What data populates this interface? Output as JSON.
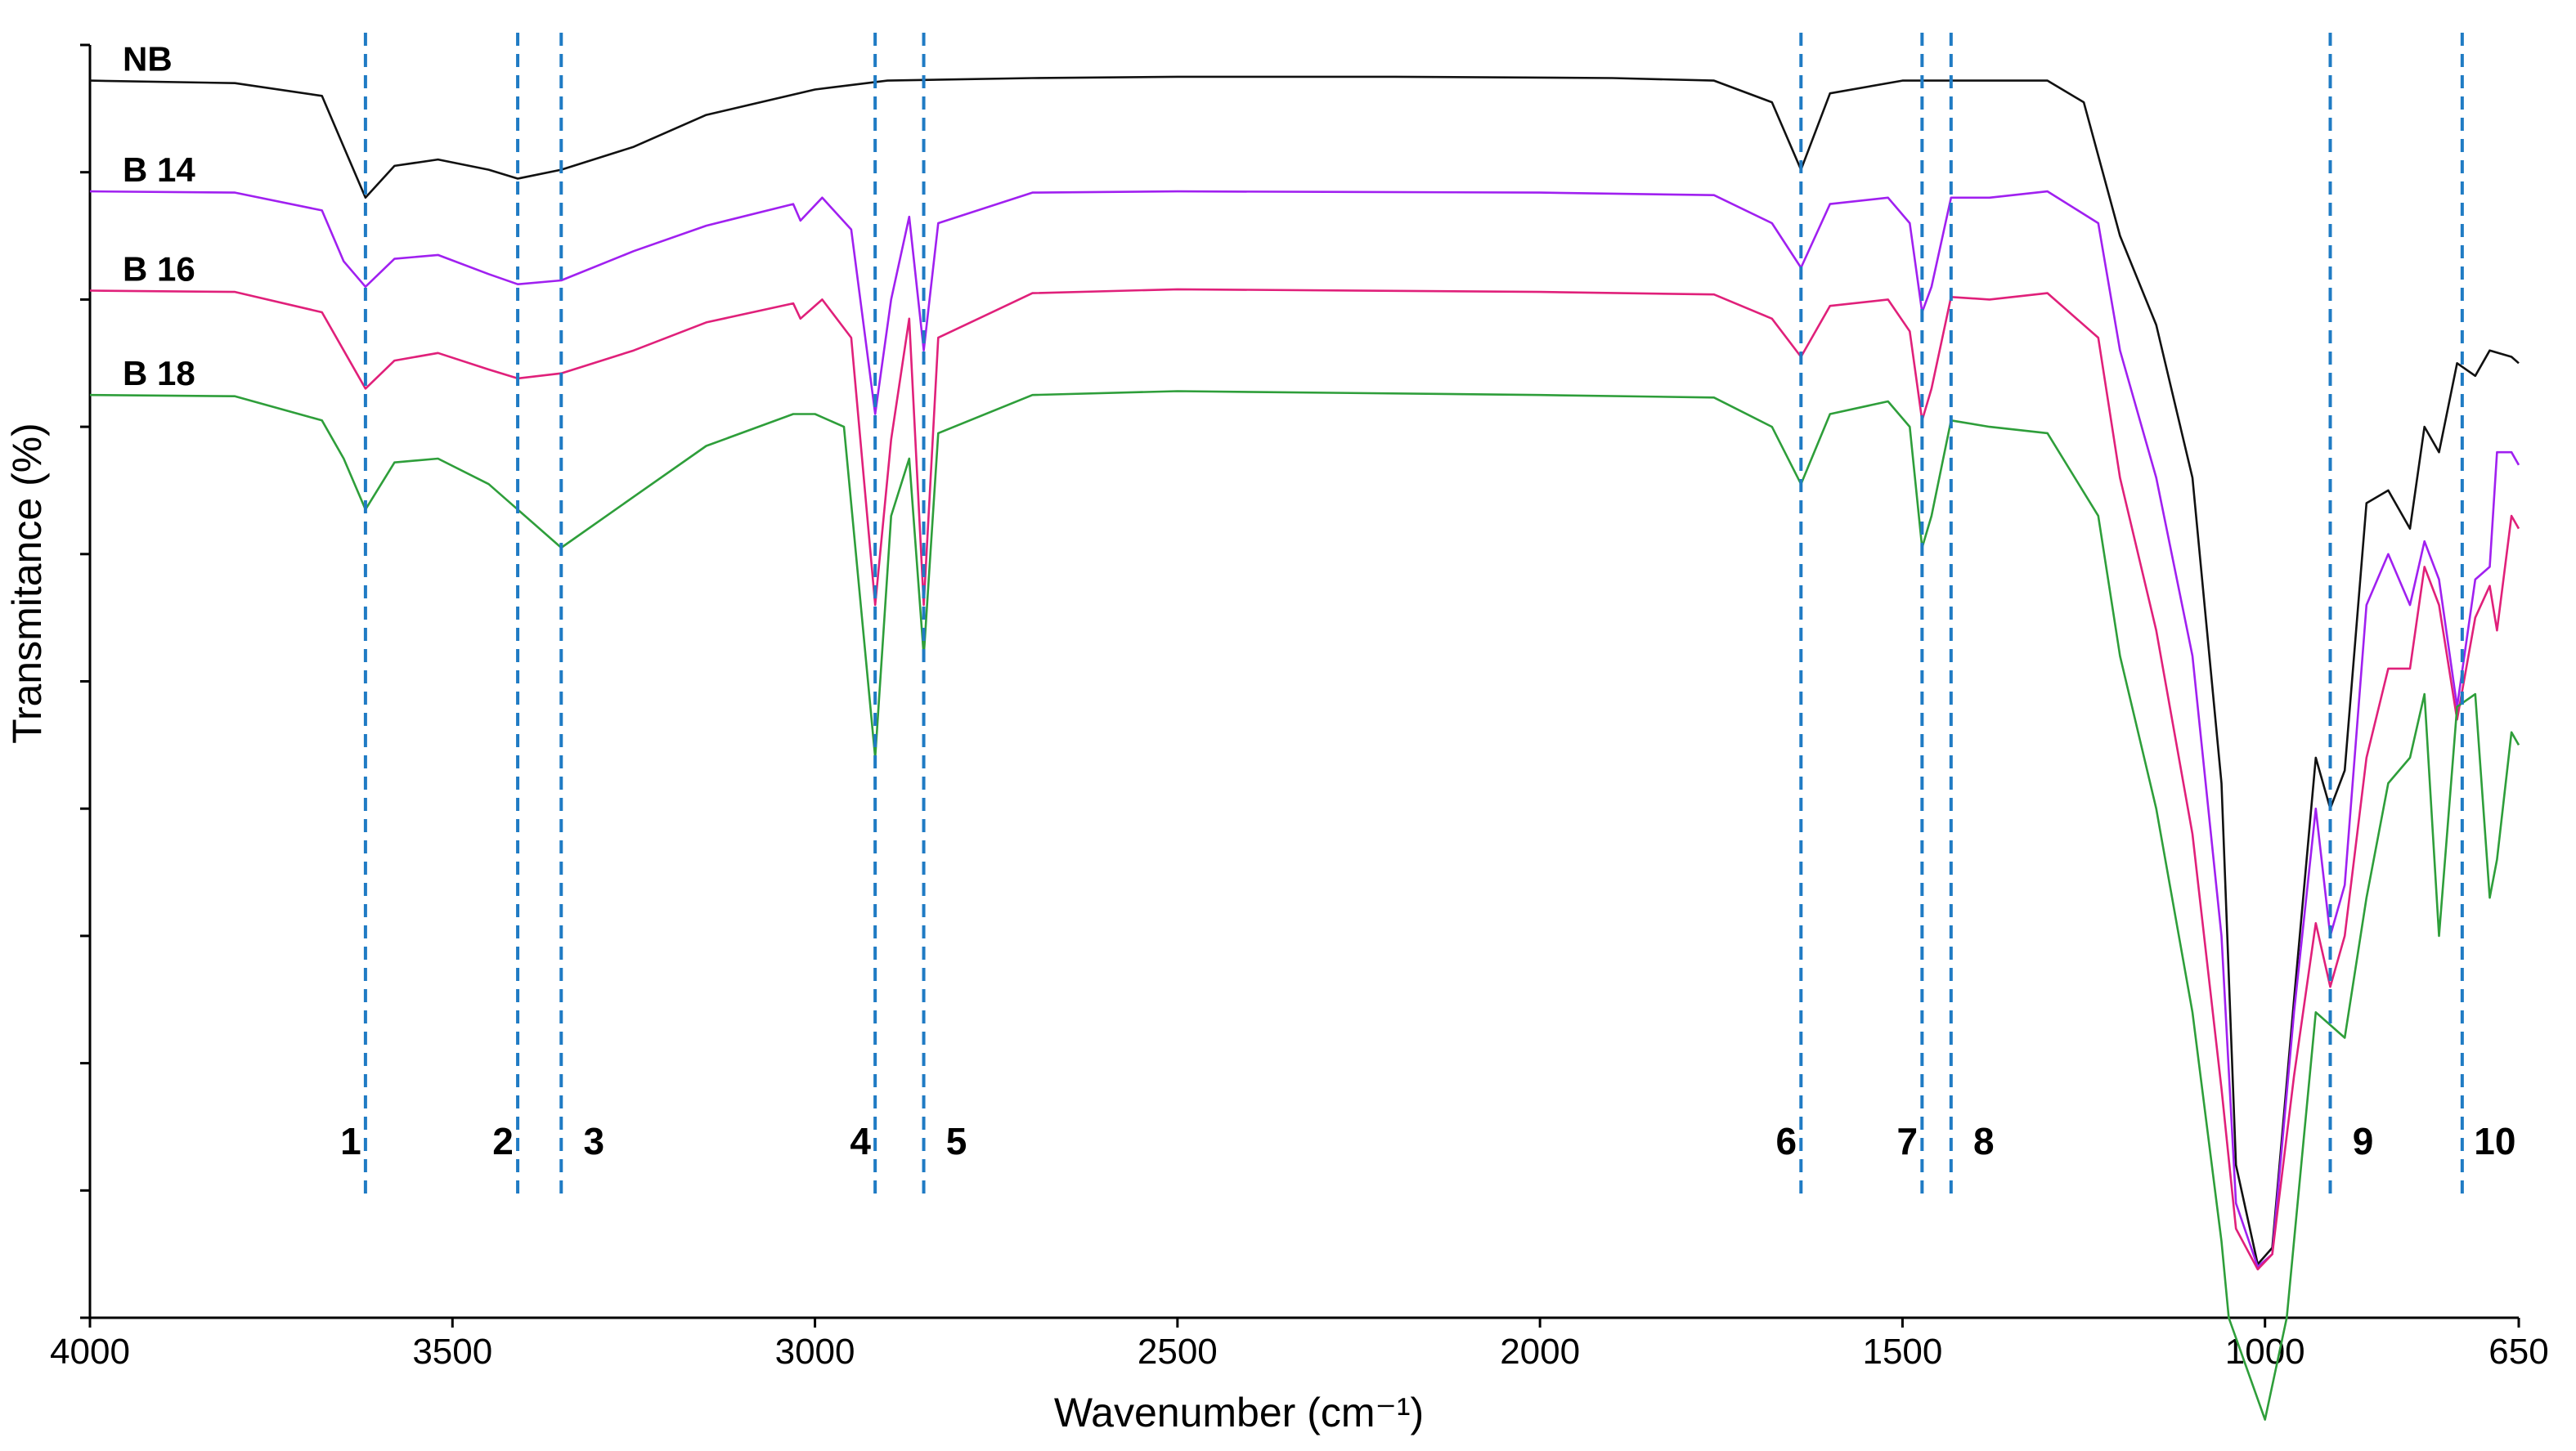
{
  "chart_data": {
    "type": "line",
    "title": "",
    "xlabel": "Wavenumber (cm⁻¹)",
    "ylabel": "Transmitance (%)",
    "xlim": [
      4000,
      650
    ],
    "x_reversed": true,
    "xticks": [
      4000,
      3500,
      3000,
      2500,
      2000,
      1500,
      1000,
      650
    ],
    "ylim": [
      0,
      10
    ],
    "y_tick_count": 11,
    "y_tick_labels_shown": false,
    "grid": false,
    "peak_lines": [
      {
        "label": "1",
        "x": 3620
      },
      {
        "label": "2",
        "x": 3410
      },
      {
        "label": "3",
        "x": 3350
      },
      {
        "label": "4",
        "x": 2917
      },
      {
        "label": "5",
        "x": 2850
      },
      {
        "label": "6",
        "x": 1640
      },
      {
        "label": "7",
        "x": 1473
      },
      {
        "label": "8",
        "x": 1433
      },
      {
        "label": "9",
        "x": 910
      },
      {
        "label": "10",
        "x": 728
      }
    ],
    "series": [
      {
        "name": "NB",
        "color": "#111111",
        "points": [
          [
            4000,
            9.72
          ],
          [
            3800,
            9.7
          ],
          [
            3680,
            9.6
          ],
          [
            3650,
            9.2
          ],
          [
            3620,
            8.8
          ],
          [
            3580,
            9.05
          ],
          [
            3520,
            9.1
          ],
          [
            3450,
            9.02
          ],
          [
            3410,
            8.95
          ],
          [
            3350,
            9.02
          ],
          [
            3250,
            9.2
          ],
          [
            3150,
            9.45
          ],
          [
            3000,
            9.65
          ],
          [
            2900,
            9.72
          ],
          [
            2700,
            9.74
          ],
          [
            2500,
            9.75
          ],
          [
            2200,
            9.75
          ],
          [
            1900,
            9.74
          ],
          [
            1760,
            9.72
          ],
          [
            1680,
            9.55
          ],
          [
            1640,
            9.02
          ],
          [
            1600,
            9.62
          ],
          [
            1500,
            9.72
          ],
          [
            1300,
            9.72
          ],
          [
            1250,
            9.55
          ],
          [
            1200,
            8.5
          ],
          [
            1150,
            7.8
          ],
          [
            1100,
            6.6
          ],
          [
            1060,
            4.2
          ],
          [
            1040,
            1.2
          ],
          [
            1010,
            0.42
          ],
          [
            990,
            0.55
          ],
          [
            960,
            2.5
          ],
          [
            930,
            4.4
          ],
          [
            910,
            4.0
          ],
          [
            890,
            4.3
          ],
          [
            860,
            6.4
          ],
          [
            830,
            6.5
          ],
          [
            800,
            6.2
          ],
          [
            780,
            7.0
          ],
          [
            760,
            6.8
          ],
          [
            735,
            7.5
          ],
          [
            710,
            7.4
          ],
          [
            690,
            7.6
          ],
          [
            660,
            7.55
          ],
          [
            650,
            7.5
          ]
        ]
      },
      {
        "name": "B 14",
        "color": "#a020f0",
        "points": [
          [
            4000,
            8.85
          ],
          [
            3800,
            8.84
          ],
          [
            3680,
            8.7
          ],
          [
            3650,
            8.3
          ],
          [
            3620,
            8.1
          ],
          [
            3580,
            8.32
          ],
          [
            3520,
            8.35
          ],
          [
            3450,
            8.2
          ],
          [
            3410,
            8.12
          ],
          [
            3350,
            8.15
          ],
          [
            3250,
            8.38
          ],
          [
            3150,
            8.58
          ],
          [
            3030,
            8.75
          ],
          [
            3020,
            8.62
          ],
          [
            2990,
            8.8
          ],
          [
            2950,
            8.55
          ],
          [
            2917,
            7.1
          ],
          [
            2895,
            8.0
          ],
          [
            2870,
            8.65
          ],
          [
            2850,
            7.6
          ],
          [
            2830,
            8.6
          ],
          [
            2700,
            8.84
          ],
          [
            2500,
            8.85
          ],
          [
            2000,
            8.84
          ],
          [
            1760,
            8.82
          ],
          [
            1680,
            8.6
          ],
          [
            1640,
            8.25
          ],
          [
            1600,
            8.75
          ],
          [
            1520,
            8.8
          ],
          [
            1490,
            8.6
          ],
          [
            1473,
            7.9
          ],
          [
            1460,
            8.1
          ],
          [
            1433,
            8.8
          ],
          [
            1380,
            8.8
          ],
          [
            1300,
            8.85
          ],
          [
            1230,
            8.6
          ],
          [
            1200,
            7.6
          ],
          [
            1150,
            6.6
          ],
          [
            1100,
            5.2
          ],
          [
            1060,
            3.0
          ],
          [
            1040,
            0.9
          ],
          [
            1010,
            0.4
          ],
          [
            990,
            0.5
          ],
          [
            960,
            2.4
          ],
          [
            930,
            4.0
          ],
          [
            910,
            3.0
          ],
          [
            890,
            3.4
          ],
          [
            860,
            5.6
          ],
          [
            830,
            6.0
          ],
          [
            800,
            5.6
          ],
          [
            780,
            6.1
          ],
          [
            760,
            5.8
          ],
          [
            735,
            4.8
          ],
          [
            710,
            5.8
          ],
          [
            690,
            5.9
          ],
          [
            680,
            6.8
          ],
          [
            660,
            6.8
          ],
          [
            650,
            6.7
          ]
        ]
      },
      {
        "name": "B 16",
        "color": "#e0207a",
        "points": [
          [
            4000,
            8.07
          ],
          [
            3800,
            8.06
          ],
          [
            3680,
            7.9
          ],
          [
            3650,
            7.6
          ],
          [
            3620,
            7.3
          ],
          [
            3580,
            7.52
          ],
          [
            3520,
            7.58
          ],
          [
            3450,
            7.45
          ],
          [
            3410,
            7.38
          ],
          [
            3350,
            7.42
          ],
          [
            3250,
            7.6
          ],
          [
            3150,
            7.82
          ],
          [
            3030,
            7.97
          ],
          [
            3020,
            7.85
          ],
          [
            2990,
            8.0
          ],
          [
            2950,
            7.7
          ],
          [
            2917,
            5.6
          ],
          [
            2895,
            6.9
          ],
          [
            2870,
            7.85
          ],
          [
            2850,
            5.6
          ],
          [
            2830,
            7.7
          ],
          [
            2700,
            8.05
          ],
          [
            2500,
            8.08
          ],
          [
            2000,
            8.06
          ],
          [
            1760,
            8.04
          ],
          [
            1680,
            7.85
          ],
          [
            1640,
            7.55
          ],
          [
            1600,
            7.95
          ],
          [
            1520,
            8.0
          ],
          [
            1490,
            7.75
          ],
          [
            1473,
            7.05
          ],
          [
            1460,
            7.3
          ],
          [
            1433,
            8.02
          ],
          [
            1380,
            8.0
          ],
          [
            1300,
            8.05
          ],
          [
            1230,
            7.7
          ],
          [
            1200,
            6.6
          ],
          [
            1150,
            5.4
          ],
          [
            1100,
            3.8
          ],
          [
            1060,
            1.8
          ],
          [
            1040,
            0.7
          ],
          [
            1010,
            0.38
          ],
          [
            990,
            0.5
          ],
          [
            960,
            1.9
          ],
          [
            930,
            3.1
          ],
          [
            910,
            2.6
          ],
          [
            890,
            3.0
          ],
          [
            860,
            4.4
          ],
          [
            830,
            5.1
          ],
          [
            800,
            5.1
          ],
          [
            780,
            5.9
          ],
          [
            760,
            5.6
          ],
          [
            735,
            4.7
          ],
          [
            710,
            5.5
          ],
          [
            690,
            5.75
          ],
          [
            680,
            5.4
          ],
          [
            660,
            6.3
          ],
          [
            650,
            6.2
          ]
        ]
      },
      {
        "name": "B 18",
        "color": "#2e9e3a",
        "points": [
          [
            4000,
            7.25
          ],
          [
            3800,
            7.24
          ],
          [
            3680,
            7.05
          ],
          [
            3650,
            6.75
          ],
          [
            3620,
            6.35
          ],
          [
            3580,
            6.72
          ],
          [
            3520,
            6.75
          ],
          [
            3450,
            6.55
          ],
          [
            3410,
            6.35
          ],
          [
            3350,
            6.05
          ],
          [
            3250,
            6.45
          ],
          [
            3150,
            6.85
          ],
          [
            3030,
            7.1
          ],
          [
            3000,
            7.1
          ],
          [
            2960,
            7.0
          ],
          [
            2917,
            4.4
          ],
          [
            2895,
            6.3
          ],
          [
            2870,
            6.75
          ],
          [
            2850,
            5.2
          ],
          [
            2830,
            6.95
          ],
          [
            2700,
            7.25
          ],
          [
            2500,
            7.28
          ],
          [
            2000,
            7.25
          ],
          [
            1760,
            7.23
          ],
          [
            1680,
            7.0
          ],
          [
            1640,
            6.55
          ],
          [
            1600,
            7.1
          ],
          [
            1520,
            7.2
          ],
          [
            1490,
            7.0
          ],
          [
            1473,
            6.05
          ],
          [
            1460,
            6.3
          ],
          [
            1433,
            7.05
          ],
          [
            1380,
            7.0
          ],
          [
            1300,
            6.95
          ],
          [
            1230,
            6.3
          ],
          [
            1200,
            5.2
          ],
          [
            1150,
            4.0
          ],
          [
            1100,
            2.4
          ],
          [
            1060,
            0.6
          ],
          [
            1050,
            0.0
          ],
          [
            1000,
            -0.8
          ],
          [
            970,
            0.0
          ],
          [
            950,
            1.2
          ],
          [
            930,
            2.4
          ],
          [
            910,
            2.3
          ],
          [
            890,
            2.2
          ],
          [
            860,
            3.3
          ],
          [
            830,
            4.2
          ],
          [
            800,
            4.4
          ],
          [
            780,
            4.9
          ],
          [
            760,
            3.0
          ],
          [
            735,
            4.8
          ],
          [
            710,
            4.9
          ],
          [
            690,
            3.3
          ],
          [
            680,
            3.6
          ],
          [
            660,
            4.6
          ],
          [
            650,
            4.5
          ]
        ]
      }
    ]
  }
}
